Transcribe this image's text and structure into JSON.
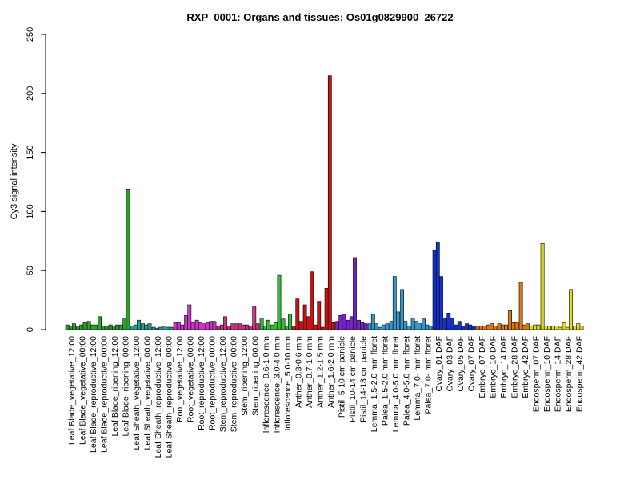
{
  "chart_data": {
    "type": "bar",
    "title": "RXP_0001: Organs and tissues; Os01g0829900_26722",
    "xlabel": "",
    "ylabel": "Cy3 signal intensity",
    "ylim": [
      0,
      250
    ],
    "yticks": [
      0,
      50,
      100,
      150,
      200,
      250
    ],
    "grid": false,
    "legend": "none",
    "groups": [
      {
        "label": "Leaf Blade_vegetative_12:00",
        "color": "#2ca02c",
        "values": [
          4,
          3,
          5
        ]
      },
      {
        "label": "Leaf Blade_vegetative_00:00",
        "color": "#2ca02c",
        "values": [
          3,
          4,
          6
        ]
      },
      {
        "label": "Leaf Blade_reproductive_12:00",
        "color": "#2ca02c",
        "values": [
          7,
          4,
          4
        ]
      },
      {
        "label": "Leaf Blade_reproductive_00:00",
        "color": "#2ca02c",
        "values": [
          11,
          3,
          3
        ]
      },
      {
        "label": "Leaf Blade_ripening_12:00",
        "color": "#2ca02c",
        "values": [
          4,
          3,
          4
        ]
      },
      {
        "label": "Leaf Blade_ripening_00:00",
        "color": "#2ca02c",
        "values": [
          4,
          10,
          119
        ]
      },
      {
        "label": "Leaf Sheath_vegetative_12:00",
        "color": "#2aa198",
        "values": [
          3,
          4,
          8
        ]
      },
      {
        "label": "Leaf Sheath_vegetative_00:00",
        "color": "#2aa198",
        "values": [
          5,
          4,
          5
        ]
      },
      {
        "label": "Leaf Sheath_reproductive_12:00",
        "color": "#2aa198",
        "values": [
          2,
          1,
          2
        ]
      },
      {
        "label": "Leaf Sheath_reproductive_00:00",
        "color": "#2aa198",
        "values": [
          3,
          2,
          2
        ]
      },
      {
        "label": "Root_vegetative_12:00",
        "color": "#cc33cc",
        "values": [
          6,
          6,
          4
        ]
      },
      {
        "label": "Root_vegetative_00:00",
        "color": "#cc33cc",
        "values": [
          12,
          21,
          6
        ]
      },
      {
        "label": "Root_reproductive_12:00",
        "color": "#cc33cc",
        "values": [
          8,
          6,
          5
        ]
      },
      {
        "label": "Root_reproductive_00:00",
        "color": "#cc33cc",
        "values": [
          6,
          7,
          7
        ]
      },
      {
        "label": "Stem_reproductive_12:00",
        "color": "#cc3388",
        "values": [
          3,
          4,
          11
        ]
      },
      {
        "label": "Stem_reproductive_00:00",
        "color": "#cc3388",
        "values": [
          3,
          5,
          5
        ]
      },
      {
        "label": "Stem_ripening_12:00",
        "color": "#cc3388",
        "values": [
          5,
          4,
          4
        ]
      },
      {
        "label": "Stem_ripening_00:00",
        "color": "#cc3388",
        "values": [
          3,
          20,
          5
        ]
      },
      {
        "label": "Inflorescence_0.6-1.0 mm",
        "color": "#33bb33",
        "values": [
          10,
          3,
          8
        ]
      },
      {
        "label": "Inflorescence_3.0-4.0 mm",
        "color": "#33bb33",
        "values": [
          4,
          6,
          46
        ]
      },
      {
        "label": "Inflorescence_5.0-10 mm",
        "color": "#33bb33",
        "values": [
          9,
          3,
          13
        ]
      },
      {
        "label": "Anther_0.3-0.6 mm",
        "color": "#cc1111",
        "values": [
          3,
          26,
          7
        ]
      },
      {
        "label": "Anther_0.7-1.0 mm",
        "color": "#cc1111",
        "values": [
          21,
          11,
          49
        ]
      },
      {
        "label": "Anther_1.2-1.5 mm",
        "color": "#cc1111",
        "values": [
          4,
          24,
          2
        ]
      },
      {
        "label": "Anther_1.6-2.0 mm",
        "color": "#cc1111",
        "values": [
          35,
          215,
          6
        ]
      },
      {
        "label": "Pistil_5-10 cm panicle",
        "color": "#7722cc",
        "values": [
          7,
          12,
          13
        ]
      },
      {
        "label": "Pistil_10-14 cm panicle",
        "color": "#7722cc",
        "values": [
          8,
          11,
          61
        ]
      },
      {
        "label": "Pistil_14-18 cm panicle",
        "color": "#7722cc",
        "values": [
          8,
          6,
          5
        ]
      },
      {
        "label": "Lemma_1.5-2.0 mm floret",
        "color": "#3399cc",
        "values": [
          5,
          13,
          5
        ]
      },
      {
        "label": "Palea_1.5-2.0 mm floret",
        "color": "#3399cc",
        "values": [
          2,
          4,
          5
        ]
      },
      {
        "label": "Lemma_4.0-5.0 mm floret",
        "color": "#3399cc",
        "values": [
          7,
          45,
          15
        ]
      },
      {
        "label": "Palea_4.0-5.0 mm floret",
        "color": "#3399cc",
        "values": [
          34,
          7,
          3
        ]
      },
      {
        "label": "Lemma_7.0- mm floret",
        "color": "#3399cc",
        "values": [
          10,
          7,
          5
        ]
      },
      {
        "label": "Palea_7.0- mm floret",
        "color": "#3399cc",
        "values": [
          9,
          4,
          3
        ]
      },
      {
        "label": "Ovary_01 DAF",
        "color": "#1133cc",
        "values": [
          67,
          74,
          45
        ]
      },
      {
        "label": "Ovary_03 DAF",
        "color": "#1133cc",
        "values": [
          10,
          14,
          10
        ]
      },
      {
        "label": "Ovary_05 DAF",
        "color": "#1133cc",
        "values": [
          4,
          7,
          3
        ]
      },
      {
        "label": "Ovary_07 DAF",
        "color": "#1133cc",
        "values": [
          5,
          4,
          3
        ]
      },
      {
        "label": "Embryo_07 DAF",
        "color": "#dd7711",
        "values": [
          3,
          3,
          3
        ]
      },
      {
        "label": "Embryo_10 DAF",
        "color": "#dd7711",
        "values": [
          4,
          5,
          3
        ]
      },
      {
        "label": "Embryo_14 DAF",
        "color": "#dd7711",
        "values": [
          5,
          4,
          4
        ]
      },
      {
        "label": "Embryo_28 DAF",
        "color": "#dd7711",
        "values": [
          16,
          6,
          6
        ]
      },
      {
        "label": "Embryo_42 DAF",
        "color": "#dd7711",
        "values": [
          40,
          4,
          5
        ]
      },
      {
        "label": "Endosperm_07 DAF",
        "color": "#dddd22",
        "values": [
          3,
          4,
          4
        ]
      },
      {
        "label": "Endosperm_10 DAF",
        "color": "#dddd22",
        "values": [
          73,
          3,
          3
        ]
      },
      {
        "label": "Endosperm_14 DAF",
        "color": "#dddd22",
        "values": [
          3,
          3,
          2
        ]
      },
      {
        "label": "Endosperm_28 DAF",
        "color": "#dddd22",
        "values": [
          6,
          2,
          34
        ]
      },
      {
        "label": "Endosperm_42 DAF",
        "color": "#dddd22",
        "values": [
          3,
          5,
          3
        ]
      }
    ]
  }
}
